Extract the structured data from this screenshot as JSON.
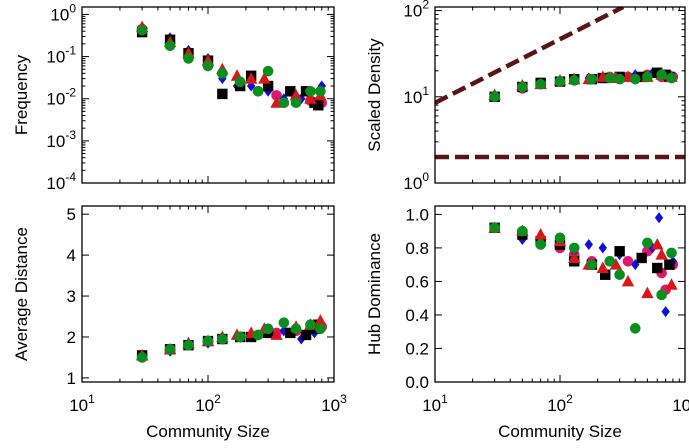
{
  "chart_data": [
    {
      "type": "scatter",
      "xlabel": "",
      "ylabel": "Frequency",
      "xscale": "log",
      "yscale": "log",
      "xlim": [
        10,
        1000
      ],
      "ylim": [
        0.0001,
        1.5
      ],
      "xticks": [
        "10^1",
        "10^2",
        "10^3"
      ],
      "yticks": [
        "10^0",
        "10^-1",
        "10^-2",
        "10^-3",
        "10^-4"
      ],
      "show_x_tick_labels": false,
      "series": [
        {
          "color": "#e3166e",
          "marker": "circle",
          "x": [
            30,
            50,
            70,
            100,
            130,
            180,
            250,
            350,
            500,
            650,
            800
          ],
          "y": [
            0.45,
            0.22,
            0.1,
            0.06,
            0.04,
            0.025,
            0.015,
            0.012,
            0.01,
            0.009,
            0.008
          ]
        },
        {
          "color": "#1010dd",
          "marker": "diamond",
          "x": [
            30,
            50,
            70,
            100,
            130,
            170,
            220,
            300,
            400,
            550,
            700,
            800
          ],
          "y": [
            0.4,
            0.28,
            0.14,
            0.09,
            0.03,
            0.02,
            0.02,
            0.015,
            0.01,
            0.01,
            0.008,
            0.02
          ]
        },
        {
          "color": "#000000",
          "marker": "square",
          "x": [
            30,
            50,
            70,
            100,
            130,
            180,
            220,
            300,
            450,
            600,
            700,
            750
          ],
          "y": [
            0.38,
            0.25,
            0.12,
            0.08,
            0.013,
            0.02,
            0.035,
            0.02,
            0.015,
            0.015,
            0.008,
            0.007
          ]
        },
        {
          "color": "#d81818",
          "marker": "triangle",
          "x": [
            30,
            50,
            70,
            100,
            130,
            170,
            220,
            280,
            350,
            500,
            650,
            780
          ],
          "y": [
            0.5,
            0.22,
            0.12,
            0.08,
            0.05,
            0.035,
            0.03,
            0.03,
            0.008,
            0.012,
            0.01,
            0.012
          ]
        },
        {
          "color": "#0a8f1e",
          "marker": "circle",
          "x": [
            30,
            50,
            70,
            100,
            130,
            180,
            250,
            300,
            400,
            500,
            650,
            780
          ],
          "y": [
            0.42,
            0.18,
            0.09,
            0.06,
            0.04,
            0.025,
            0.015,
            0.045,
            0.008,
            0.008,
            0.015,
            0.015
          ]
        }
      ]
    },
    {
      "type": "scatter",
      "xlabel": "",
      "ylabel": "Scaled Density",
      "xscale": "log",
      "yscale": "log",
      "xlim": [
        10,
        1000
      ],
      "ylim": [
        1,
        110
      ],
      "xticks": [
        "10^1",
        "10^2",
        "10^3"
      ],
      "yticks": [
        "10^2",
        "10^1",
        "10^0"
      ],
      "show_x_tick_labels": false,
      "lines": [
        {
          "color": "#5a1414",
          "style": "dashed",
          "x": [
            10,
            320
          ],
          "y": [
            8.5,
            110
          ]
        },
        {
          "color": "#5a1414",
          "style": "dashed",
          "x": [
            10,
            1000
          ],
          "y": [
            2,
            2
          ]
        }
      ],
      "series": [
        {
          "color": "#e3166e",
          "marker": "circle",
          "x": [
            30,
            50,
            70,
            100,
            130,
            180,
            250,
            350,
            500,
            650,
            800
          ],
          "y": [
            10,
            12.5,
            14,
            15,
            16,
            16,
            17,
            17,
            18,
            17,
            17
          ]
        },
        {
          "color": "#1010dd",
          "marker": "diamond",
          "x": [
            30,
            50,
            70,
            100,
            130,
            170,
            220,
            300,
            400,
            550,
            700,
            800
          ],
          "y": [
            10.5,
            13,
            14.5,
            15.5,
            16,
            16.5,
            17,
            17,
            18,
            19,
            18,
            17
          ]
        },
        {
          "color": "#000000",
          "marker": "square",
          "x": [
            30,
            50,
            70,
            100,
            130,
            180,
            220,
            300,
            450,
            600,
            700,
            750
          ],
          "y": [
            10,
            13,
            14.5,
            15,
            16,
            16,
            16.5,
            17,
            17,
            19,
            18,
            17
          ]
        },
        {
          "color": "#d81818",
          "marker": "triangle",
          "x": [
            30,
            50,
            70,
            100,
            130,
            170,
            220,
            280,
            350,
            500,
            650,
            780
          ],
          "y": [
            10.5,
            13.5,
            14,
            15.5,
            16,
            16,
            17,
            16.5,
            17,
            17,
            18,
            17
          ]
        },
        {
          "color": "#0a8f1e",
          "marker": "circle",
          "x": [
            30,
            50,
            70,
            100,
            130,
            180,
            250,
            300,
            400,
            500,
            650,
            780
          ],
          "y": [
            10,
            13,
            14,
            15,
            15.5,
            16,
            16.5,
            16,
            16,
            17,
            18,
            16.5
          ]
        }
      ]
    },
    {
      "type": "scatter",
      "xlabel": "Community Size",
      "ylabel": "Average Distance",
      "xscale": "log",
      "yscale": "linear",
      "xlim": [
        10,
        1000
      ],
      "ylim": [
        0.9,
        5.2
      ],
      "xticks": [
        "10^1",
        "10^2",
        "10^3"
      ],
      "yticks": [
        "1",
        "2",
        "3",
        "4",
        "5"
      ],
      "show_x_tick_labels": true,
      "series": [
        {
          "color": "#e3166e",
          "marker": "circle",
          "x": [
            30,
            50,
            70,
            100,
            130,
            180,
            250,
            350,
            500,
            650,
            800
          ],
          "y": [
            1.55,
            1.7,
            1.8,
            1.9,
            1.95,
            2.0,
            2.05,
            2.1,
            2.15,
            2.2,
            2.25
          ]
        },
        {
          "color": "#1010dd",
          "marker": "diamond",
          "x": [
            30,
            50,
            70,
            100,
            130,
            170,
            220,
            300,
            400,
            550,
            700,
            800
          ],
          "y": [
            1.55,
            1.65,
            1.8,
            1.85,
            1.95,
            2.0,
            2.05,
            2.1,
            2.15,
            1.95,
            2.1,
            2.2
          ]
        },
        {
          "color": "#000000",
          "marker": "square",
          "x": [
            30,
            50,
            70,
            100,
            130,
            180,
            220,
            300,
            450,
            600,
            700,
            750
          ],
          "y": [
            1.55,
            1.7,
            1.8,
            1.9,
            1.95,
            2.0,
            2.0,
            2.1,
            2.1,
            2.05,
            2.2,
            2.3
          ]
        },
        {
          "color": "#d81818",
          "marker": "triangle",
          "x": [
            30,
            50,
            70,
            100,
            130,
            170,
            220,
            280,
            350,
            500,
            650,
            780
          ],
          "y": [
            1.55,
            1.7,
            1.85,
            1.9,
            2.0,
            2.05,
            2.1,
            2.2,
            2.05,
            2.25,
            2.3,
            2.4
          ]
        },
        {
          "color": "#0a8f1e",
          "marker": "circle",
          "x": [
            30,
            50,
            70,
            100,
            130,
            180,
            250,
            300,
            400,
            500,
            650,
            780
          ],
          "y": [
            1.5,
            1.7,
            1.8,
            1.9,
            1.95,
            2.0,
            2.05,
            2.2,
            2.35,
            2.2,
            2.3,
            2.2
          ]
        }
      ]
    },
    {
      "type": "scatter",
      "xlabel": "Community Size",
      "ylabel": "Hub Dominance",
      "xscale": "log",
      "yscale": "linear",
      "xlim": [
        10,
        1000
      ],
      "ylim": [
        0,
        1.05
      ],
      "xticks": [
        "10^1",
        "10^2",
        "10^3"
      ],
      "yticks": [
        "0.0",
        "0.2",
        "0.4",
        "0.6",
        "0.8",
        "1.0"
      ],
      "show_x_tick_labels": true,
      "series": [
        {
          "color": "#e3166e",
          "marker": "circle",
          "x": [
            30,
            50,
            70,
            100,
            130,
            180,
            250,
            350,
            500,
            650,
            700,
            800
          ],
          "y": [
            0.92,
            0.88,
            0.84,
            0.8,
            0.76,
            0.72,
            0.72,
            0.72,
            0.78,
            0.65,
            0.55,
            0.7
          ]
        },
        {
          "color": "#1010dd",
          "marker": "diamond",
          "x": [
            30,
            50,
            70,
            100,
            130,
            170,
            220,
            300,
            400,
            550,
            620,
            700,
            800
          ],
          "y": [
            0.92,
            0.85,
            0.86,
            0.82,
            0.78,
            0.82,
            0.8,
            0.76,
            0.7,
            0.8,
            0.98,
            0.42,
            0.72
          ]
        },
        {
          "color": "#000000",
          "marker": "square",
          "x": [
            30,
            50,
            70,
            100,
            130,
            180,
            230,
            300,
            450,
            600,
            750
          ],
          "y": [
            0.92,
            0.88,
            0.84,
            0.82,
            0.72,
            0.7,
            0.64,
            0.78,
            0.74,
            0.68,
            0.7
          ]
        },
        {
          "color": "#d81818",
          "marker": "triangle",
          "x": [
            30,
            50,
            70,
            100,
            130,
            170,
            220,
            280,
            350,
            500,
            600,
            650,
            780
          ],
          "y": [
            0.92,
            0.9,
            0.88,
            0.84,
            0.74,
            0.7,
            0.68,
            0.7,
            0.6,
            0.53,
            0.82,
            0.76,
            0.58
          ]
        },
        {
          "color": "#0a8f1e",
          "marker": "circle",
          "x": [
            30,
            50,
            70,
            100,
            130,
            180,
            250,
            300,
            400,
            500,
            650,
            780
          ],
          "y": [
            0.92,
            0.9,
            0.82,
            0.86,
            0.8,
            0.7,
            0.72,
            0.64,
            0.32,
            0.83,
            0.52,
            0.77
          ]
        }
      ]
    }
  ]
}
